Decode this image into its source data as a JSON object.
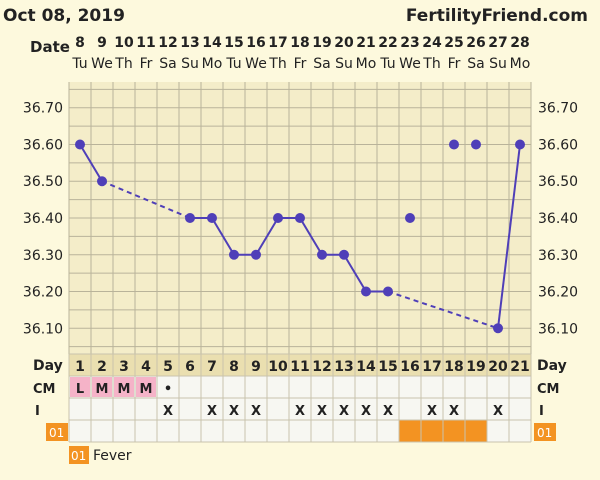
{
  "header": {
    "date": "Oct 08, 2019",
    "site": "FertilityFriend.com"
  },
  "labels": {
    "date_row": "Date",
    "day_row": "Day",
    "cm_row": "CM",
    "i_row": "I",
    "tag_row": "01",
    "legend_tag": "01",
    "legend_text": "Fever"
  },
  "colors": {
    "background": "#fdf9dd",
    "grid_panel": "#f4edc9",
    "table_panel": "#f7f7f2",
    "row_header": "#eadfb0",
    "line": "#4f3fb8",
    "menses": "#f5b3c8",
    "tag": "#f39322",
    "text": "#222222"
  },
  "chart_data": {
    "type": "line",
    "title": "",
    "xlabel": "",
    "ylabel": "",
    "ylim": [
      36.03,
      36.77
    ],
    "yticks": [
      "36.70",
      "36.60",
      "36.50",
      "36.40",
      "36.30",
      "36.20",
      "36.10"
    ],
    "dates": [
      "8",
      "9",
      "10",
      "11",
      "12",
      "13",
      "14",
      "15",
      "16",
      "17",
      "18",
      "19",
      "20",
      "21",
      "22",
      "23",
      "24",
      "25",
      "26",
      "27",
      "28"
    ],
    "weekdays": [
      "Tu",
      "We",
      "Th",
      "Fr",
      "Sa",
      "Su",
      "Mo",
      "Tu",
      "We",
      "Th",
      "Fr",
      "Sa",
      "Su",
      "Mo",
      "Tu",
      "We",
      "Th",
      "Fr",
      "Sa",
      "Su",
      "Mo"
    ],
    "cycle_days": [
      "1",
      "2",
      "3",
      "4",
      "5",
      "6",
      "7",
      "8",
      "9",
      "10",
      "11",
      "12",
      "13",
      "14",
      "15",
      "16",
      "17",
      "18",
      "19",
      "20",
      "21"
    ],
    "temps": [
      36.6,
      36.5,
      null,
      null,
      null,
      36.4,
      36.4,
      36.3,
      36.3,
      36.4,
      36.4,
      36.3,
      36.3,
      36.2,
      36.2,
      36.4,
      null,
      36.6,
      36.6,
      36.1,
      36.6
    ],
    "connected_days": [
      1,
      2,
      6,
      7,
      8,
      9,
      10,
      11,
      12,
      13,
      14,
      15,
      20,
      21
    ],
    "open_days": [
      16,
      18,
      19
    ],
    "cm": [
      "L",
      "M",
      "M",
      "M",
      "•",
      "",
      "",
      "",
      "",
      "",
      "",
      "",
      "",
      "",
      "",
      "",
      "",
      "",
      "",
      "",
      ""
    ],
    "intercourse": [
      "",
      "",
      "",
      "",
      "X",
      "",
      "X",
      "X",
      "X",
      "",
      "X",
      "X",
      "X",
      "X",
      "X",
      "",
      "X",
      "X",
      "",
      "X",
      ""
    ],
    "tagged_days": [
      16,
      17,
      18,
      19
    ]
  }
}
